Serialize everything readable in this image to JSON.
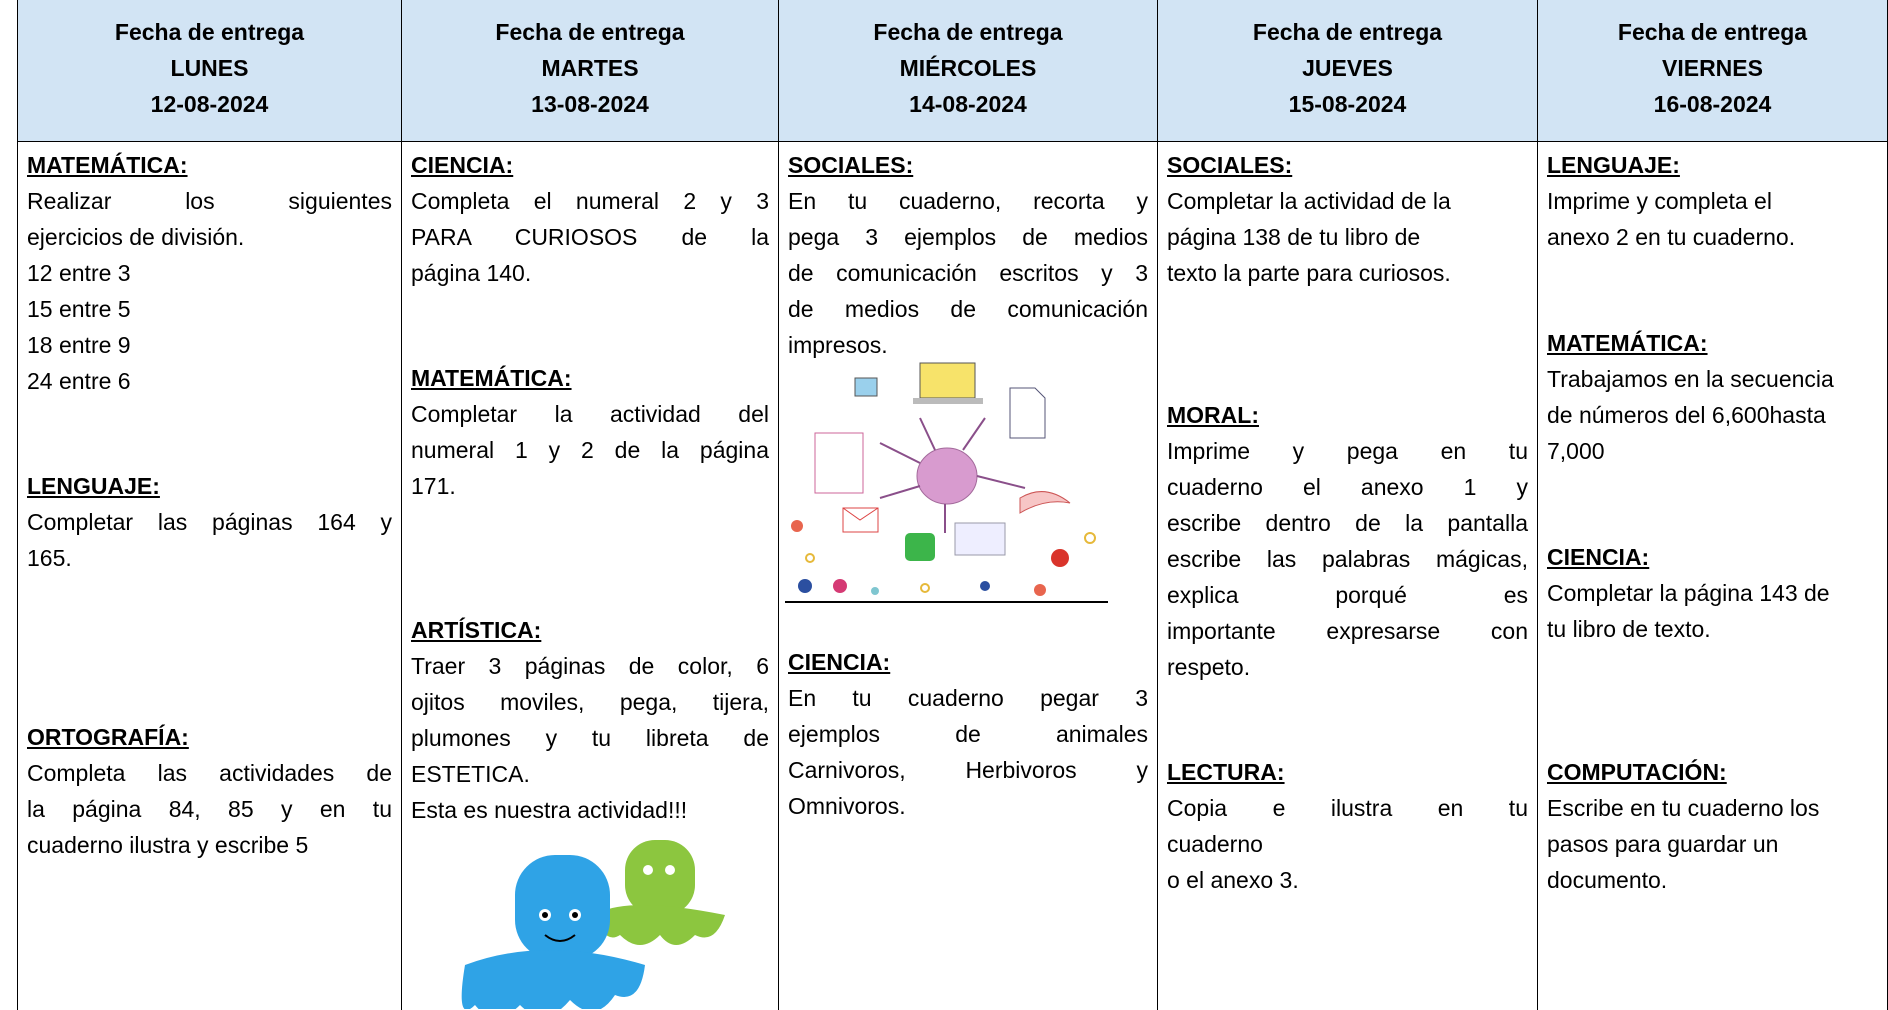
{
  "header": {
    "columns": [
      {
        "label": "Fecha de entrega",
        "day": "LUNES",
        "date": "12-08-2024"
      },
      {
        "label": "Fecha de entrega",
        "day": "MARTES",
        "date": "13-08-2024"
      },
      {
        "label": "Fecha de entrega",
        "day": "MIÉRCOLES",
        "date": "14-08-2024"
      },
      {
        "label": "Fecha de entrega",
        "day": "JUEVES",
        "date": "15-08-2024"
      },
      {
        "label": "Fecha de entrega",
        "day": "VIERNES",
        "date": "16-08-2024"
      }
    ]
  },
  "columns": [
    {
      "sections": [
        {
          "title": "MATEMÁTICA:",
          "lines": [
            "Realizar los siguientes",
            "ejercicios de división.",
            "12 entre 3",
            "15 entre 5",
            "18 entre 9",
            "24 entre 6"
          ]
        },
        {
          "title": "LENGUAJE:",
          "lines": [
            "Completar las páginas 164 y",
            "165."
          ]
        },
        {
          "title": "ORTOGRAFÍA:",
          "lines": [
            "Completa las actividades de",
            "la página 84, 85 y en tu",
            "cuaderno ilustra y escribe 5"
          ]
        }
      ]
    },
    {
      "sections": [
        {
          "title": "CIENCIA:",
          "lines": [
            "Completa el numeral 2 y 3",
            "PARA CURIOSOS de la",
            "página 140."
          ]
        },
        {
          "title": "MATEMÁTICA:",
          "lines": [
            "Completar la actividad del",
            "numeral 1 y 2 de la página",
            "171."
          ]
        },
        {
          "title": "ARTÍSTICA:",
          "lines": [
            "Traer 3 páginas de color, 6",
            "ojitos moviles, pega, tijera,",
            "plumones y tu libreta de",
            "ESTETICA.",
            "Esta es nuestra actividad!!!"
          ]
        }
      ]
    },
    {
      "sections": [
        {
          "title": "SOCIALES:",
          "lines": [
            "En tu cuaderno, recorta y",
            "pega 3 ejemplos de medios",
            "de comunicación escritos y 3",
            "de medios de comunicación",
            "impresos."
          ]
        },
        {
          "title": "CIENCIA:",
          "lines": [
            "En tu cuaderno pegar 3",
            "ejemplos de animales",
            "Carnivoros, Herbivoros y",
            "Omnivoros."
          ]
        }
      ]
    },
    {
      "sections": [
        {
          "title": "SOCIALES:",
          "lines": [
            "Completar la actividad de la",
            "página 138 de tu libro de",
            "texto la parte para curiosos."
          ]
        },
        {
          "title": "MORAL:",
          "lines": [
            "Imprime y pega en tu",
            "cuaderno el anexo 1 y",
            "escribe dentro de la pantalla",
            "escribe las palabras mágicas,",
            "explica porqué es",
            "importante expresarse con",
            "respeto."
          ]
        },
        {
          "title": "LECTURA:",
          "lines": [
            "Copia e ilustra en tu",
            "cuaderno",
            "o el anexo 3."
          ]
        }
      ]
    },
    {
      "sections": [
        {
          "title": "LENGUAJE:",
          "lines": [
            "Imprime y completa el",
            "anexo 2 en tu cuaderno."
          ]
        },
        {
          "title": "MATEMÁTICA:",
          "lines": [
            "Trabajamos en la secuencia",
            "de números del 6,600hasta",
            "7,000"
          ]
        },
        {
          "title": "CIENCIA:",
          "lines": [
            "Completar la página 143 de",
            "tu libro de texto."
          ]
        },
        {
          "title": "COMPUTACIÓN:",
          "lines": [
            "Escribe en tu cuaderno los",
            "pasos para guardar un",
            "documento."
          ]
        }
      ]
    }
  ]
}
